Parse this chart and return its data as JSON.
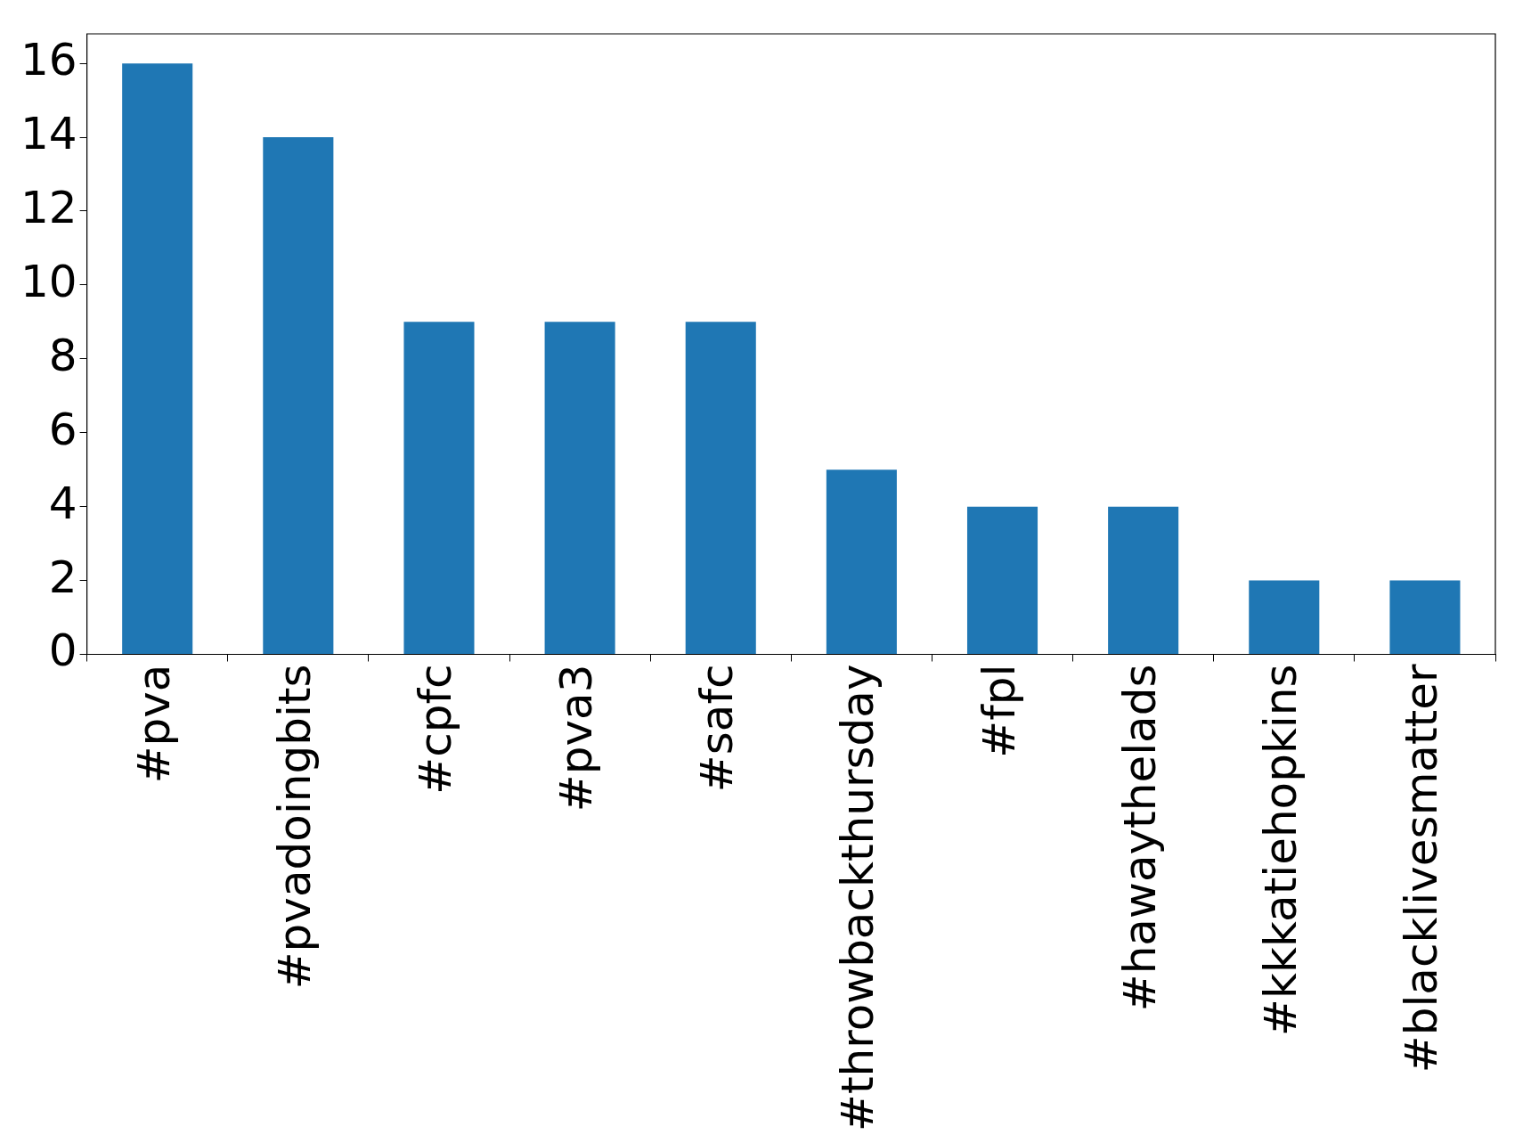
{
  "chart_data": {
    "type": "bar",
    "categories": [
      "#pva",
      "#pvadoingbits",
      "#cpfc",
      "#pva3",
      "#safc",
      "#throwbackthursday",
      "#fpl",
      "#hawaythelads",
      "#kkkatiehopkins",
      "#blacklivesmatter"
    ],
    "values": [
      16,
      14,
      9,
      9,
      9,
      5,
      4,
      4,
      2,
      2
    ],
    "color": "#1f77b4",
    "ylim": [
      0,
      16.8
    ],
    "yticks": [
      0,
      2,
      4,
      6,
      8,
      10,
      12,
      14,
      16
    ],
    "grid": false,
    "legend": false
  }
}
